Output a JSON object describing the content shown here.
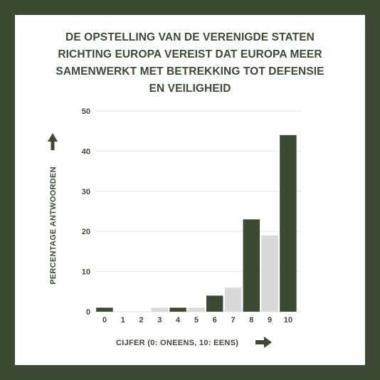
{
  "chart_data": {
    "type": "bar",
    "title_lines": [
      "DE OPSTELLING VAN DE VERENIGDE STATEN",
      "RICHTING EUROPA VEREIST DAT EUROPA MEER",
      "SAMENWERKT MET BETREKKING TOT DEFENSIE",
      "EN VEILIGHEID"
    ],
    "xlabel": "CIJFER (0: ONEENS, 10: EENS)",
    "ylabel": "PERCENTAGE ANTWOORDEN",
    "categories": [
      "0",
      "1",
      "2",
      "3",
      "4",
      "5",
      "6",
      "7",
      "8",
      "9",
      "10"
    ],
    "values": [
      1,
      0,
      0,
      1,
      1,
      1,
      4,
      6,
      23,
      19,
      44
    ],
    "bar_colors": [
      "#3c4a33",
      "#d9d9d9",
      "#3c4a33",
      "#d9d9d9",
      "#3c4a33",
      "#d9d9d9",
      "#3c4a33",
      "#d9d9d9",
      "#3c4a33",
      "#d9d9d9",
      "#3c4a33"
    ],
    "ylim": [
      0,
      50
    ],
    "yticks": [
      0,
      10,
      20,
      30,
      40,
      50
    ],
    "grid": true,
    "legend": "none"
  },
  "colors": {
    "frame": "#3c4a33",
    "bar_dark": "#3c4a33",
    "bar_light": "#d9d9d9",
    "gridline": "#e6e6e6"
  }
}
